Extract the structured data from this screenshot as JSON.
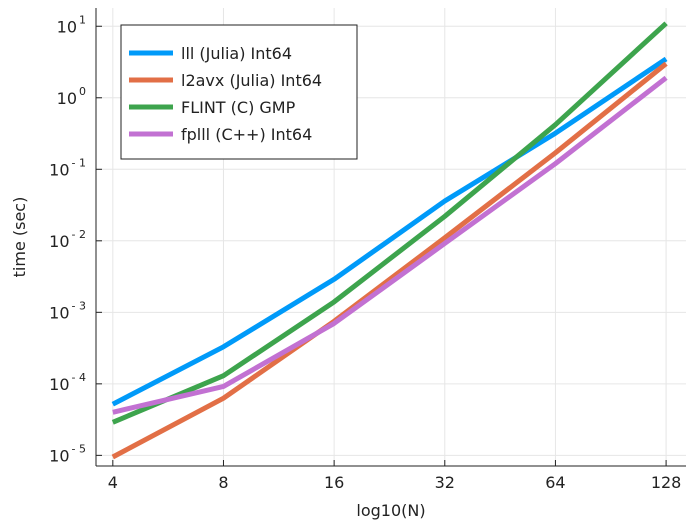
{
  "chart_data": {
    "type": "line",
    "xlabel": "log10(N)",
    "ylabel": "time (sec)",
    "x_scale": "log2",
    "y_scale": "log10",
    "x_ticks": [
      4,
      8,
      16,
      32,
      64,
      128
    ],
    "y_tick_exponents": [
      -5,
      -4,
      -3,
      -2,
      -1,
      0,
      1
    ],
    "y_tick_base": "10",
    "xlim": [
      3.6,
      145
    ],
    "ylim": [
      7.1e-06,
      18
    ],
    "grid": true,
    "legend_position": "top-left",
    "x": [
      4,
      8,
      16,
      32,
      64,
      128
    ],
    "series": [
      {
        "name": "lll (Julia) Int64",
        "color": "#009af9",
        "values": [
          5.2e-05,
          0.00033,
          0.0029,
          0.036,
          0.32,
          3.5
        ]
      },
      {
        "name": "l2avx (Julia) Int64",
        "color": "#e26f46",
        "values": [
          9.5e-06,
          6.3e-05,
          0.00075,
          0.011,
          0.17,
          3.0
        ]
      },
      {
        "name": "FLINT (C) GMP",
        "color": "#3da44d",
        "values": [
          2.9e-05,
          0.00013,
          0.0014,
          0.022,
          0.42,
          11.0
        ]
      },
      {
        "name": "fplll (C++) Int64",
        "color": "#c271d2",
        "values": [
          4e-05,
          9.2e-05,
          0.0007,
          0.0092,
          0.12,
          1.9
        ]
      }
    ]
  }
}
